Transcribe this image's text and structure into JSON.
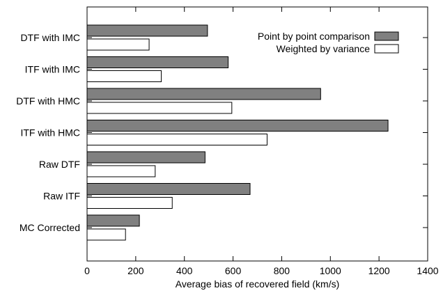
{
  "chart_data": {
    "type": "bar",
    "orientation": "horizontal",
    "title": "",
    "xlabel": "Average bias of recovered field (km/s)",
    "ylabel": "",
    "xlim": [
      0,
      1400
    ],
    "xticks": [
      0,
      200,
      400,
      600,
      800,
      1000,
      1200,
      1400
    ],
    "categories": [
      "DTF with IMC",
      "ITF with IMC",
      "DTF with HMC",
      "ITF with HMC",
      "Raw DTF",
      "Raw ITF",
      "MC Corrected"
    ],
    "series": [
      {
        "name": "Point by point comparison",
        "color": "#808080",
        "values": [
          495,
          580,
          960,
          1237,
          485,
          670,
          215
        ]
      },
      {
        "name": "Weighted by variance",
        "color": "#ffffff",
        "values": [
          255,
          305,
          595,
          740,
          280,
          350,
          158
        ]
      }
    ],
    "legend_position": "top-right",
    "grid": false
  }
}
